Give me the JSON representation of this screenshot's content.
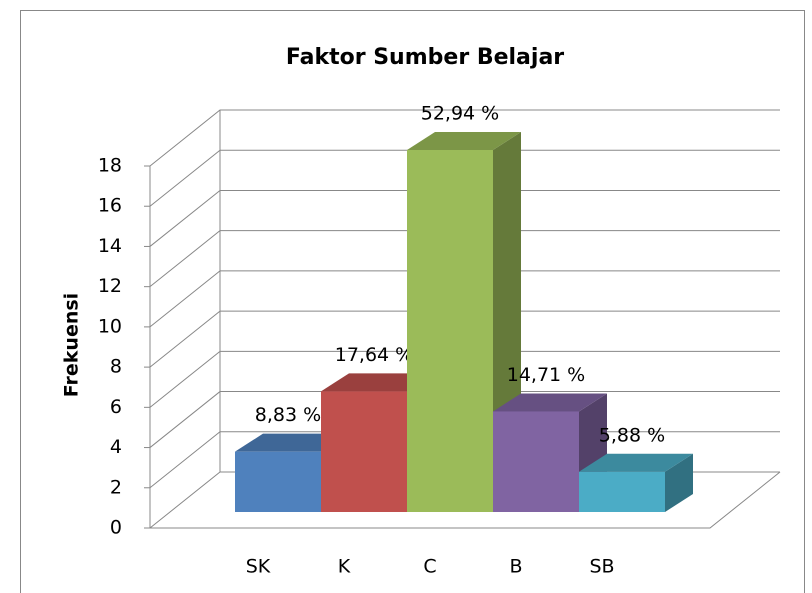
{
  "chart_data": {
    "type": "bar3d",
    "title": "Faktor Sumber Belajar",
    "y_label": "Frekuensi",
    "categories": [
      "SK",
      "K",
      "C",
      "B",
      "SB"
    ],
    "values": [
      3,
      6,
      18,
      5,
      2
    ],
    "annotations": [
      "8,83 %",
      "17,64 %",
      "52,94 %",
      "14,71 %",
      "5,88 %"
    ],
    "colors": [
      "#4f81bd",
      "#c0504d",
      "#9bbb59",
      "#8064a2",
      "#4bacc6"
    ],
    "ylim": [
      0,
      18
    ],
    "yticks": [
      0,
      2,
      4,
      6,
      8,
      10,
      12,
      14,
      16,
      18
    ],
    "grid": true
  }
}
